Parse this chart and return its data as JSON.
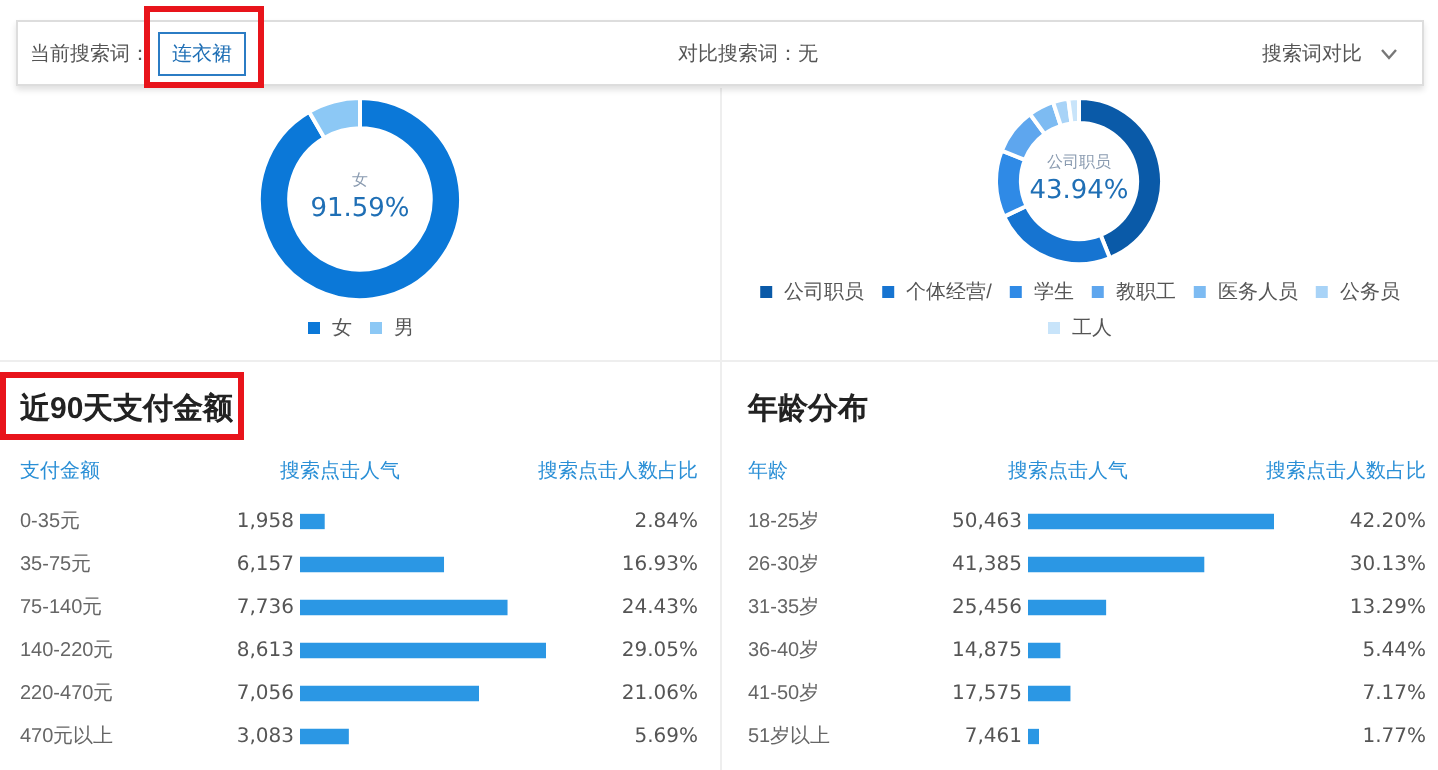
{
  "chart_data": [
    {
      "type": "other",
      "annotations": [
        "当前搜索词：",
        "连衣裙",
        "对比搜索词：无",
        "搜索词对比"
      ]
    },
    {
      "type": "donut",
      "categories": [
        "女",
        "男"
      ],
      "values": [
        91.59,
        8.41
      ],
      "colors": [
        "#0b78d8",
        "#8cc8f5"
      ],
      "value_labels": [
        "91.59%",
        null
      ],
      "legend": "bottom"
    },
    {
      "type": "donut",
      "categories": [
        "公司职员",
        "个体经营/",
        "学生",
        "教职工",
        "医务人员",
        "公务员",
        "工人"
      ],
      "values": [
        43.94,
        24,
        13,
        9,
        5,
        3,
        2.06
      ],
      "colors": [
        "#0a5aa8",
        "#1674d1",
        "#2f8ae6",
        "#5ea6ee",
        "#7dbbf2",
        "#a8d3f7",
        "#c8e4fa"
      ],
      "value_labels": [
        "43.94%",
        null,
        null,
        null,
        null,
        null,
        null
      ],
      "legend": "bottom"
    },
    {
      "type": "bar",
      "orientation": "horizontal",
      "title": "近90天支付金额",
      "ylabel": "支付金额",
      "xlabel": "搜索点击人数占比",
      "color": "#2b97e4",
      "categories": [
        "0-35元",
        "35-75元",
        "75-140元",
        "140-220元",
        "220-470元",
        "470元以上"
      ],
      "values": [
        2.84,
        16.93,
        24.43,
        29.05,
        21.06,
        5.69
      ],
      "value_labels": [
        "2.84%",
        "16.93%",
        "24.43%",
        "29.05%",
        "21.06%",
        "5.69%"
      ],
      "annotations": [
        "搜索点击人气",
        "1,958",
        "6,157",
        "7,736",
        "8,613",
        "7,056",
        "3,083"
      ]
    },
    {
      "type": "bar",
      "orientation": "horizontal",
      "title": "年龄分布",
      "ylabel": "年龄",
      "xlabel": "搜索点击人数占比",
      "color": "#2b97e4",
      "categories": [
        "18-25岁",
        "26-30岁",
        "31-35岁",
        "36-40岁",
        "41-50岁",
        "51岁以上"
      ],
      "values": [
        42.2,
        30.13,
        13.29,
        5.44,
        7.17,
        1.77
      ],
      "value_labels": [
        "42.20%",
        "30.13%",
        "13.29%",
        "5.44%",
        "7.17%",
        "1.77%"
      ],
      "annotations": [
        "搜索点击人气",
        "50,463",
        "41,385",
        "25,456",
        "14,875",
        "17,575",
        "7,461"
      ]
    }
  ]
}
